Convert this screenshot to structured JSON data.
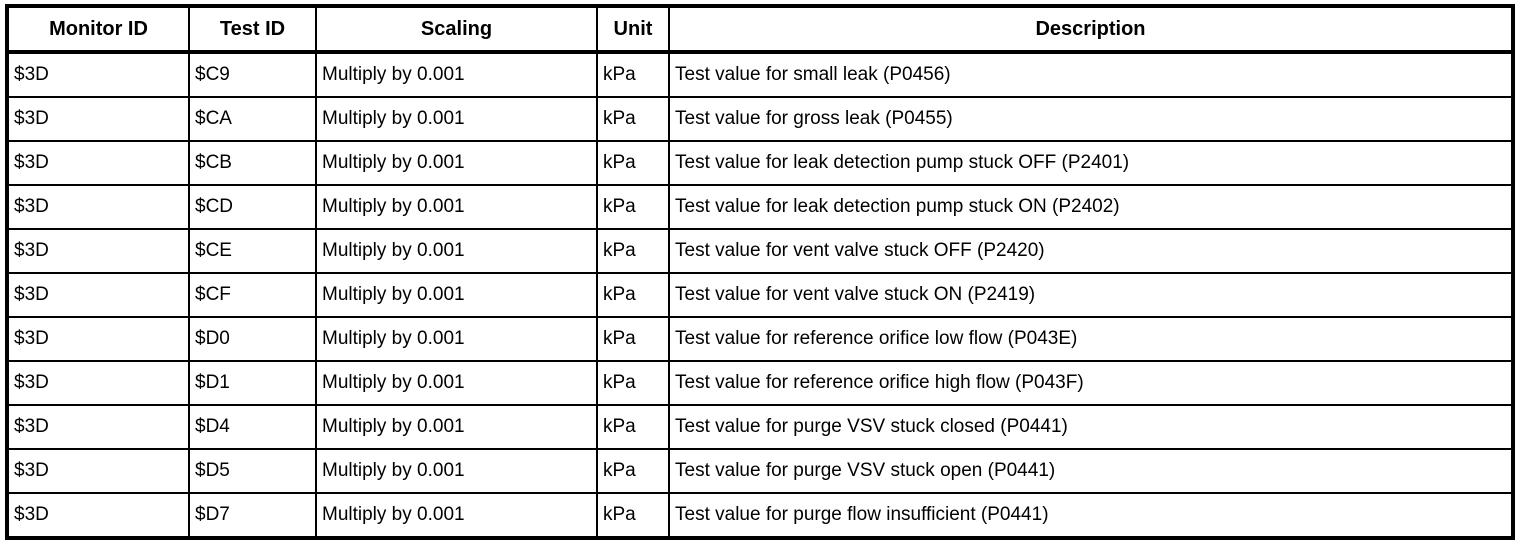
{
  "colors": {
    "border": "#000000",
    "background": "#ffffff",
    "text": "#000000"
  },
  "table": {
    "columns": [
      {
        "label": "Monitor ID"
      },
      {
        "label": "Test ID"
      },
      {
        "label": "Scaling"
      },
      {
        "label": "Unit"
      },
      {
        "label": "Description"
      }
    ],
    "rows": [
      {
        "monitor_id": "$3D",
        "test_id": "$C9",
        "scaling": "Multiply by 0.001",
        "unit": "kPa",
        "description": "Test value for small leak (P0456)"
      },
      {
        "monitor_id": "$3D",
        "test_id": "$CA",
        "scaling": "Multiply by 0.001",
        "unit": "kPa",
        "description": "Test value for gross leak (P0455)"
      },
      {
        "monitor_id": "$3D",
        "test_id": "$CB",
        "scaling": "Multiply by 0.001",
        "unit": "kPa",
        "description": "Test value for leak detection pump stuck OFF (P2401)"
      },
      {
        "monitor_id": "$3D",
        "test_id": "$CD",
        "scaling": "Multiply by 0.001",
        "unit": "kPa",
        "description": "Test value for leak detection pump stuck ON (P2402)"
      },
      {
        "monitor_id": "$3D",
        "test_id": "$CE",
        "scaling": "Multiply by 0.001",
        "unit": "kPa",
        "description": "Test value for vent valve stuck OFF (P2420)"
      },
      {
        "monitor_id": "$3D",
        "test_id": "$CF",
        "scaling": "Multiply by 0.001",
        "unit": "kPa",
        "description": "Test value for vent valve stuck ON (P2419)"
      },
      {
        "monitor_id": "$3D",
        "test_id": "$D0",
        "scaling": "Multiply by 0.001",
        "unit": "kPa",
        "description": "Test value for reference orifice low flow (P043E)"
      },
      {
        "monitor_id": "$3D",
        "test_id": "$D1",
        "scaling": "Multiply by 0.001",
        "unit": "kPa",
        "description": "Test value for reference orifice high flow (P043F)"
      },
      {
        "monitor_id": "$3D",
        "test_id": "$D4",
        "scaling": "Multiply by 0.001",
        "unit": "kPa",
        "description": "Test value for purge VSV stuck closed (P0441)"
      },
      {
        "monitor_id": "$3D",
        "test_id": "$D5",
        "scaling": "Multiply by 0.001",
        "unit": "kPa",
        "description": "Test value for purge VSV stuck open (P0441)"
      },
      {
        "monitor_id": "$3D",
        "test_id": "$D7",
        "scaling": "Multiply by 0.001",
        "unit": "kPa",
        "description": "Test value for purge flow insufficient (P0441)"
      }
    ]
  }
}
